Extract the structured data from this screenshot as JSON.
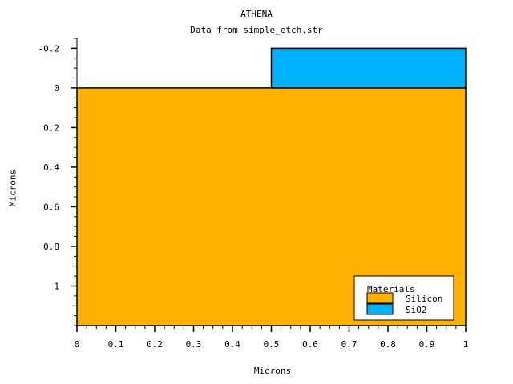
{
  "chart_data": {
    "type": "area",
    "title": "ATHENA",
    "subtitle": "Data from simple_etch.str",
    "xlabel": "Microns",
    "ylabel": "Microns",
    "xlim": [
      0,
      1
    ],
    "ylim": [
      -0.25,
      1.2
    ],
    "y_inverted": true,
    "x_ticks": [
      0,
      0.1,
      0.2,
      0.3,
      0.4,
      0.5,
      0.6,
      0.7,
      0.8,
      0.9,
      1
    ],
    "x_tick_labels": [
      "0",
      "0.1",
      "0.2",
      "0.3",
      "0.4",
      "0.5",
      "0.6",
      "0.7",
      "0.8",
      "0.9",
      "1"
    ],
    "y_ticks": [
      -0.2,
      0,
      0.2,
      0.4,
      0.6,
      0.8,
      1
    ],
    "y_tick_labels": [
      "-0.2",
      "0",
      "0.2",
      "0.4",
      "0.6",
      "0.8",
      "1"
    ],
    "grid": false,
    "legend_position": "bottom-right",
    "legend_title": "Materials",
    "regions": [
      {
        "name": "Silicon",
        "color": "#ffb000",
        "x": [
          0,
          1
        ],
        "y": [
          0,
          1.2
        ]
      },
      {
        "name": "SiO2",
        "color": "#00b0ff",
        "x": [
          0.5,
          1
        ],
        "y": [
          -0.2,
          0
        ]
      }
    ]
  }
}
